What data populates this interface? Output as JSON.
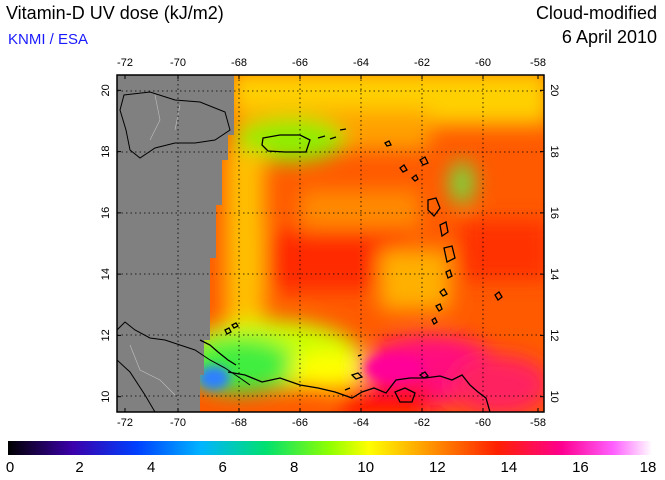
{
  "header": {
    "title": "Vitamin-D UV dose (kJ/m2)",
    "credit": "KNMI / ESA",
    "mode": "Cloud-modified",
    "date": "6 April 2010"
  },
  "map": {
    "lon_range": [
      -72,
      -58
    ],
    "lat_range": [
      9.5,
      20.5
    ],
    "lon_ticks": [
      "-72",
      "-70",
      "-68",
      "-66",
      "-64",
      "-62",
      "-60",
      "-58"
    ],
    "lat_ticks": [
      "10",
      "12",
      "14",
      "16",
      "18",
      "20"
    ],
    "no_data_color": "#808080",
    "gridlines": "dotted",
    "coastline_color": "#000000"
  },
  "colorbar": {
    "min": 0,
    "max": 18,
    "labels": [
      "0",
      "2",
      "4",
      "6",
      "8",
      "10",
      "12",
      "14",
      "16",
      "18"
    ],
    "colors": [
      "#000000",
      "#3b00aa",
      "#0040ff",
      "#00b4ff",
      "#00e070",
      "#90ff00",
      "#ffff00",
      "#ff9000",
      "#ff2000",
      "#ff0090",
      "#ff60ff",
      "#ffffff"
    ]
  }
}
